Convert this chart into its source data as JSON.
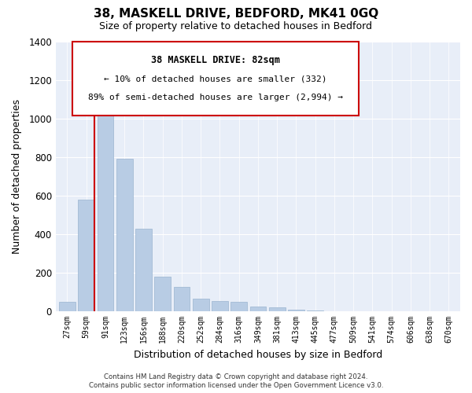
{
  "title": "38, MASKELL DRIVE, BEDFORD, MK41 0GQ",
  "subtitle": "Size of property relative to detached houses in Bedford",
  "xlabel": "Distribution of detached houses by size in Bedford",
  "ylabel": "Number of detached properties",
  "bar_labels": [
    "27sqm",
    "59sqm",
    "91sqm",
    "123sqm",
    "156sqm",
    "188sqm",
    "220sqm",
    "252sqm",
    "284sqm",
    "316sqm",
    "349sqm",
    "381sqm",
    "413sqm",
    "445sqm",
    "477sqm",
    "509sqm",
    "541sqm",
    "574sqm",
    "606sqm",
    "638sqm",
    "670sqm"
  ],
  "bar_values": [
    50,
    580,
    1040,
    790,
    430,
    180,
    125,
    65,
    55,
    50,
    25,
    20,
    10,
    5,
    2,
    0,
    0,
    0,
    0,
    0,
    0
  ],
  "bar_color": "#b8cce4",
  "bar_edgecolor": "#9ab4d0",
  "vline_color": "#cc0000",
  "ylim": [
    0,
    1400
  ],
  "yticks": [
    0,
    200,
    400,
    600,
    800,
    1000,
    1200,
    1400
  ],
  "annotation_title": "38 MASKELL DRIVE: 82sqm",
  "annotation_line1": "← 10% of detached houses are smaller (332)",
  "annotation_line2": "89% of semi-detached houses are larger (2,994) →",
  "annotation_box_color": "#cc0000",
  "footer_line1": "Contains HM Land Registry data © Crown copyright and database right 2024.",
  "footer_line2": "Contains public sector information licensed under the Open Government Licence v3.0.",
  "background_color": "#e8eef8"
}
